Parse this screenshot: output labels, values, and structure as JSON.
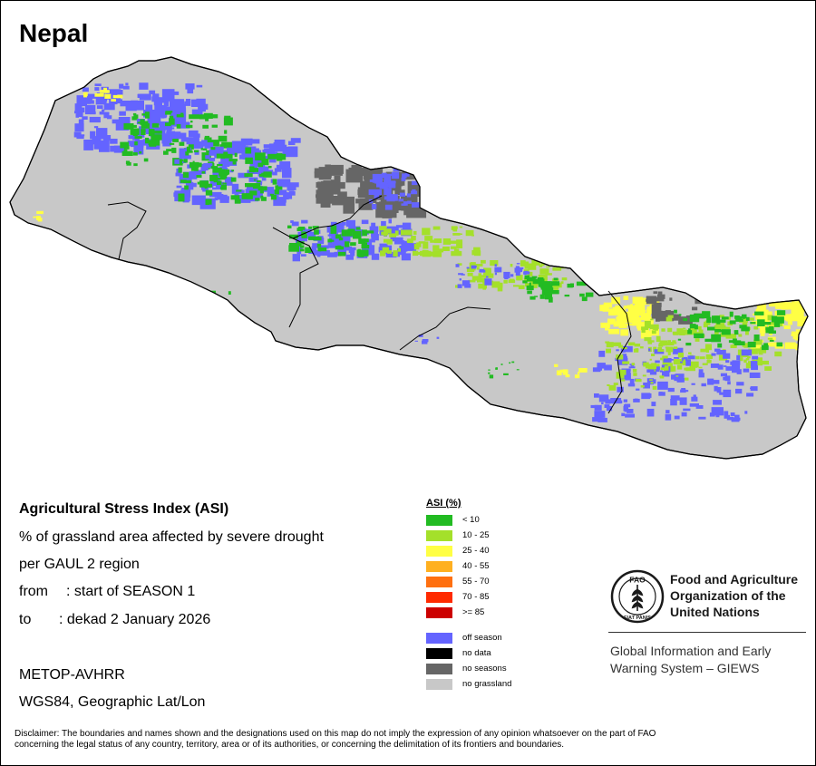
{
  "map": {
    "title": "Nepal",
    "colors": {
      "background": "#ffffff",
      "no_grassland_fill": "#c8c8c8",
      "border": "#000000",
      "off_season": "#6464ff",
      "no_seasons": "#666666",
      "lt10": "#22bb22",
      "b10_25": "#a4e02a",
      "b25_40": "#ffff44"
    }
  },
  "info": {
    "title": "Agricultural Stress Index (ASI)",
    "line1": "% of grassland area affected by severe drought",
    "line2": "per GAUL 2 region",
    "from_label": "from",
    "from_value": ": start of SEASON 1",
    "to_label": "to",
    "to_value": ": dekad 2 January 2026",
    "sensor": "METOP-AVHRR",
    "projection": "WGS84, Geographic Lat/Lon"
  },
  "legend": {
    "title": "ASI (%)",
    "classes": [
      {
        "label": "< 10",
        "color": "#22bb22"
      },
      {
        "label": "10 - 25",
        "color": "#a4e02a"
      },
      {
        "label": "25 - 40",
        "color": "#ffff44"
      },
      {
        "label": "40 - 55",
        "color": "#ffb020"
      },
      {
        "label": "55 - 70",
        "color": "#ff7010"
      },
      {
        "label": "70 - 85",
        "color": "#ff2a00"
      },
      {
        "label": ">= 85",
        "color": "#cc0000"
      }
    ],
    "other": [
      {
        "label": "off season",
        "color": "#6464ff"
      },
      {
        "label": "no data",
        "color": "#000000"
      },
      {
        "label": "no seasons",
        "color": "#666666"
      },
      {
        "label": "no grassland",
        "color": "#c8c8c8"
      }
    ]
  },
  "fao": {
    "logo_text": "FAO",
    "logo_motto": "FIAT PANIS",
    "name_line1": "Food and Agriculture",
    "name_line2": "Organization of the",
    "name_line3": "United Nations",
    "giews_line1": "Global Information and Early",
    "giews_line2": "Warning System – GIEWS"
  },
  "disclaimer": {
    "line1": "Disclaimer: The boundaries and names shown and the designations used on this map do not imply the expression of any opinion whatsoever on the part of FAO",
    "line2": "concerning the legal status of any country, territory, area or of its authorities, or concerning the delimitation of its frontiers and boundaries."
  }
}
